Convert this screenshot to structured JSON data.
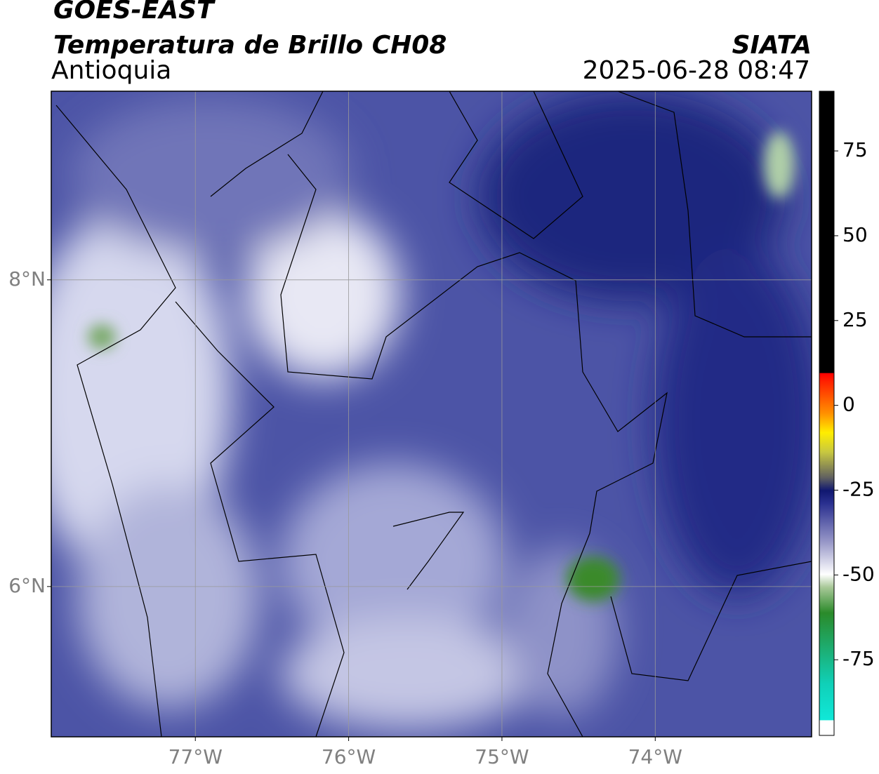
{
  "chart_data": {
    "type": "map",
    "title": "GOES-EAST",
    "subtitle": "Temperatura de Brillo CH08",
    "source": "SIATA",
    "region": "Antioquia",
    "datetime": "2025-06-28 08:47",
    "xlim": [
      -77.94,
      -72.98
    ],
    "xticks": [
      {
        "value": -77,
        "label": "77°W"
      },
      {
        "value": -76,
        "label": "76°W"
      },
      {
        "value": -75,
        "label": "75°W"
      },
      {
        "value": -74,
        "label": "74°W"
      }
    ],
    "ylim": [
      5.02,
      9.23
    ],
    "yticks": [
      {
        "value": 6,
        "label": "6°N"
      },
      {
        "value": 8,
        "label": "8°N"
      }
    ],
    "grid": true,
    "colorbar_lim": [
      -97.3,
      92.6
    ],
    "colorbar_ticks": [
      -75,
      -50,
      -25,
      0,
      25,
      50,
      75
    ]
  }
}
